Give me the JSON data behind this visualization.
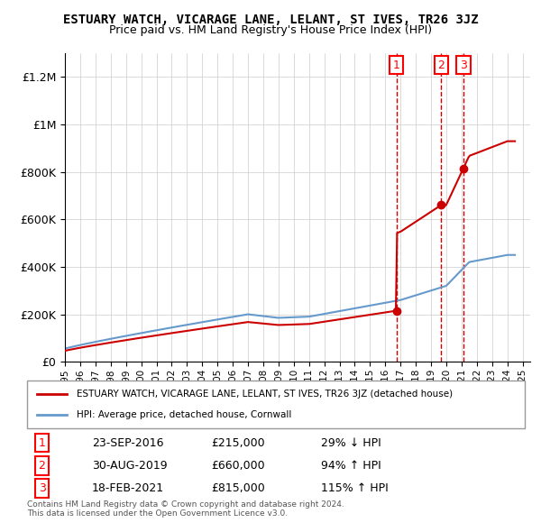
{
  "title": "ESTUARY WATCH, VICARAGE LANE, LELANT, ST IVES, TR26 3JZ",
  "subtitle": "Price paid vs. HM Land Registry's House Price Index (HPI)",
  "ylabel_ticks": [
    "£0",
    "£200K",
    "£400K",
    "£600K",
    "£800K",
    "£1M",
    "£1.2M"
  ],
  "ylim": [
    0,
    1300000
  ],
  "xlim_start": 1995.0,
  "xlim_end": 2025.5,
  "sale_dates": [
    2016.73,
    2019.66,
    2021.12
  ],
  "sale_prices": [
    215000,
    660000,
    815000
  ],
  "sale_labels": [
    "1",
    "2",
    "3"
  ],
  "sale_info": [
    [
      "1",
      "23-SEP-2016",
      "£215,000",
      "29% ↓ HPI"
    ],
    [
      "2",
      "30-AUG-2019",
      "£660,000",
      "94% ↑ HPI"
    ],
    [
      "3",
      "18-FEB-2021",
      "£815,000",
      "115% ↑ HPI"
    ]
  ],
  "legend_entries": [
    "ESTUARY WATCH, VICARAGE LANE, LELANT, ST IVES, TR26 3JZ (detached house)",
    "HPI: Average price, detached house, Cornwall"
  ],
  "footnote": "Contains HM Land Registry data © Crown copyright and database right 2024.\nThis data is licensed under the Open Government Licence v3.0.",
  "property_color": "#cc0000",
  "hpi_color": "#6699cc",
  "vline_color": "#cc0000",
  "background_color": "#ffffff",
  "grid_color": "#cccccc"
}
